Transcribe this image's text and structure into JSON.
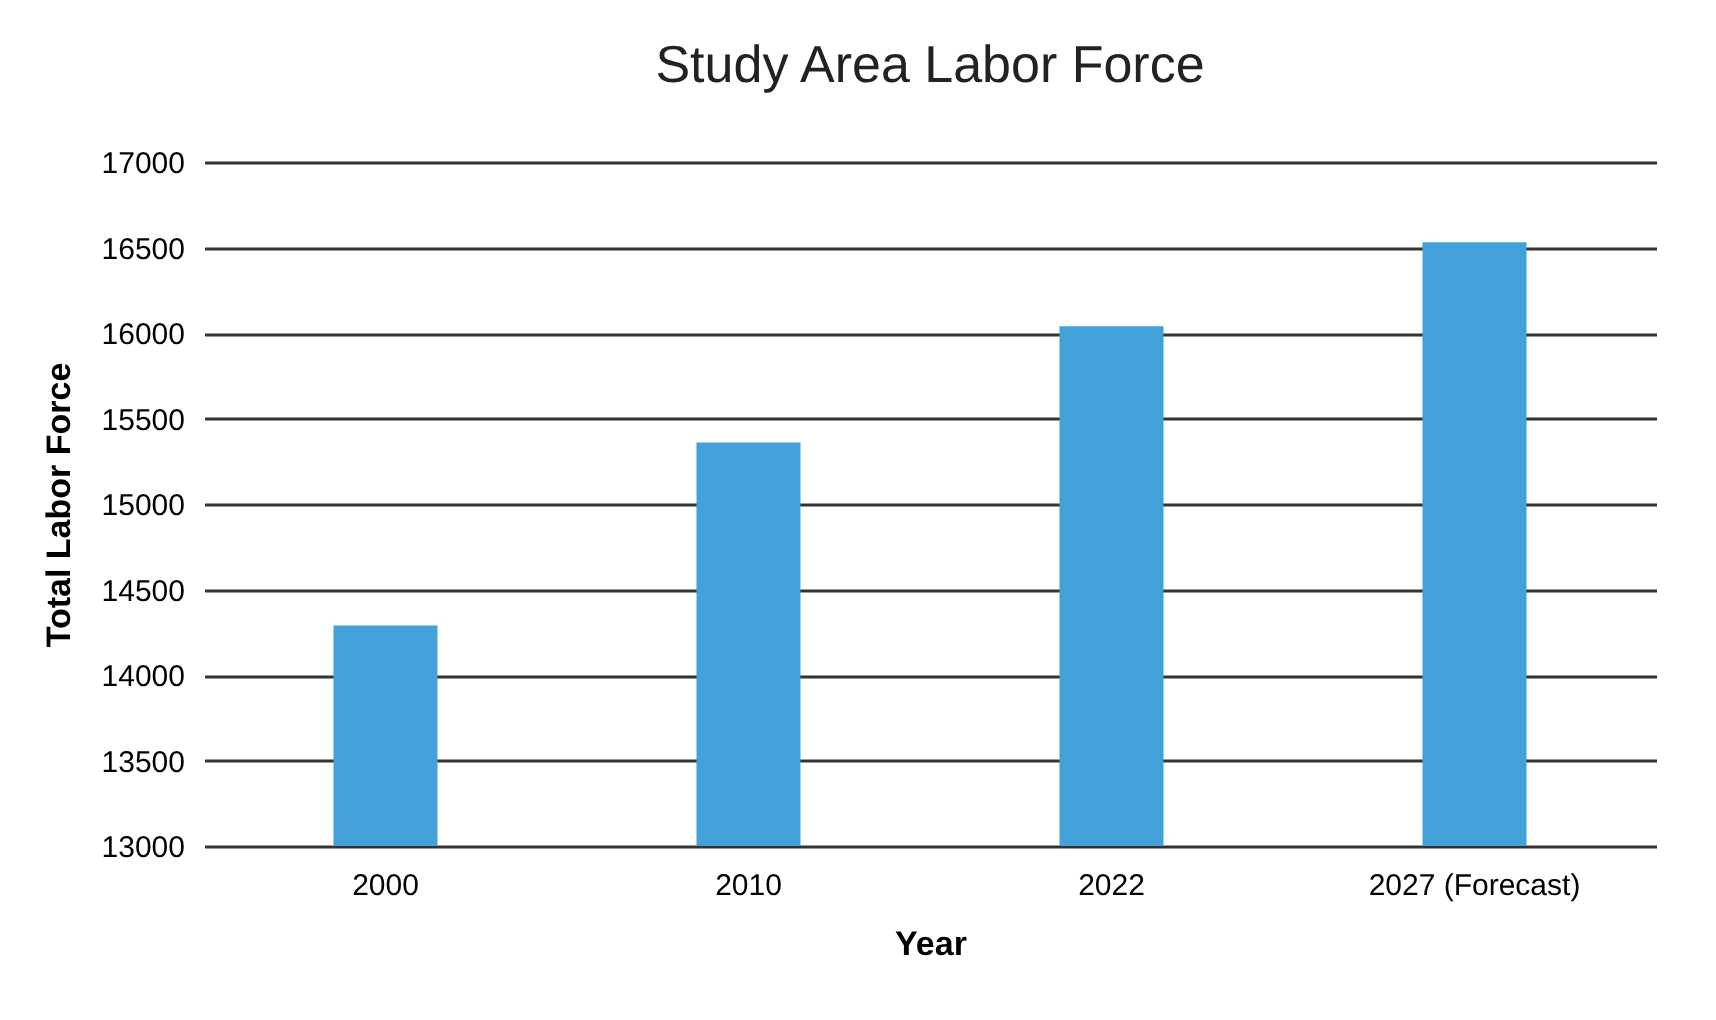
{
  "chart_data": {
    "type": "bar",
    "title": "Study Area Labor Force",
    "xlabel": "Year",
    "ylabel": "Total Labor Force",
    "categories": [
      "2000",
      "2010",
      "2022",
      "2027 (Forecast)"
    ],
    "values": [
      14290,
      15360,
      16040,
      16530
    ],
    "color": "#41a1d8",
    "ylim": [
      13000,
      17000
    ],
    "yticks": [
      13000,
      13500,
      14000,
      14500,
      15000,
      15500,
      16000,
      16500,
      17000
    ],
    "grid": "y"
  }
}
